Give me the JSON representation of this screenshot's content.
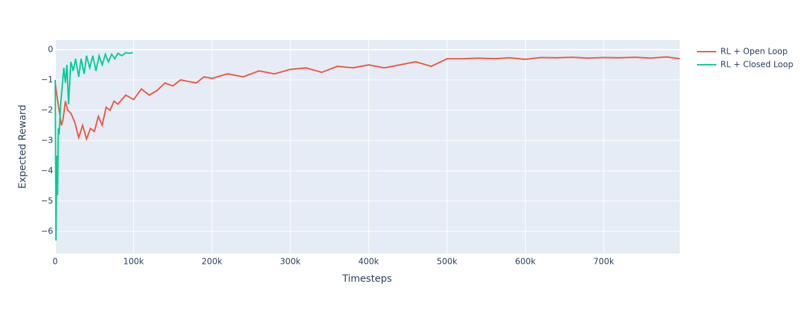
{
  "chart_data": {
    "type": "line",
    "x_label": "Timesteps",
    "y_label": "Expected Reward",
    "xlim": [
      0,
      797000
    ],
    "ylim": [
      -6.73,
      0.32
    ],
    "xticks": [
      0,
      {
        "value": 100000,
        "label": "100k"
      },
      {
        "value": 200000,
        "label": "200k"
      },
      {
        "value": 300000,
        "label": "300k"
      },
      {
        "value": 400000,
        "label": "400k"
      },
      {
        "value": 500000,
        "label": "500k"
      },
      {
        "value": 600000,
        "label": "600k"
      },
      {
        "value": 700000,
        "label": "700k"
      }
    ],
    "yticks": [
      {
        "value": -6,
        "label": "−6"
      },
      {
        "value": -5,
        "label": "−5"
      },
      {
        "value": -4,
        "label": "−4"
      },
      {
        "value": -3,
        "label": "−3"
      },
      {
        "value": -2,
        "label": "−2"
      },
      {
        "value": -1,
        "label": "−1"
      },
      0
    ],
    "grid": true,
    "legend": "top-right",
    "series": [
      {
        "name": "RL + Open Loop",
        "color": "#EF553B",
        "x": [
          0,
          2000,
          5000,
          8000,
          10000,
          13000,
          16000,
          20000,
          25000,
          30000,
          35000,
          40000,
          45000,
          50000,
          55000,
          60000,
          65000,
          70000,
          75000,
          80000,
          90000,
          100000,
          110000,
          120000,
          130000,
          140000,
          150000,
          160000,
          170000,
          180000,
          190000,
          200000,
          220000,
          240000,
          260000,
          280000,
          300000,
          320000,
          340000,
          360000,
          380000,
          400000,
          420000,
          440000,
          460000,
          480000,
          500000,
          520000,
          540000,
          560000,
          580000,
          600000,
          620000,
          640000,
          660000,
          680000,
          700000,
          720000,
          740000,
          760000,
          780000,
          797000
        ],
        "values": [
          -1.1,
          -1.5,
          -2.0,
          -2.5,
          -2.3,
          -1.7,
          -2.0,
          -2.1,
          -2.4,
          -2.9,
          -2.5,
          -2.95,
          -2.6,
          -2.7,
          -2.2,
          -2.5,
          -1.9,
          -2.0,
          -1.7,
          -1.8,
          -1.5,
          -1.65,
          -1.3,
          -1.5,
          -1.35,
          -1.1,
          -1.2,
          -1.0,
          -1.05,
          -1.1,
          -0.9,
          -0.95,
          -0.8,
          -0.9,
          -0.7,
          -0.8,
          -0.65,
          -0.6,
          -0.75,
          -0.55,
          -0.6,
          -0.5,
          -0.6,
          -0.5,
          -0.4,
          -0.55,
          -0.3,
          -0.3,
          -0.28,
          -0.3,
          -0.27,
          -0.32,
          -0.26,
          -0.27,
          -0.25,
          -0.28,
          -0.26,
          -0.27,
          -0.25,
          -0.28,
          -0.24,
          -0.3
        ]
      },
      {
        "name": "RL + Closed Loop",
        "color": "#00CC96",
        "x": [
          0,
          1000,
          2000,
          3000,
          4000,
          5000,
          7000,
          9000,
          11000,
          13000,
          15000,
          17000,
          20000,
          23000,
          26000,
          30000,
          33000,
          37000,
          40000,
          44000,
          48000,
          52000,
          56000,
          60000,
          64000,
          68000,
          72000,
          76000,
          80000,
          85000,
          90000,
          95000,
          99000
        ],
        "values": [
          -1.0,
          -6.3,
          -3.5,
          -4.8,
          -2.6,
          -2.8,
          -1.8,
          -1.2,
          -0.6,
          -1.1,
          -0.5,
          -1.8,
          -0.4,
          -0.7,
          -0.3,
          -0.9,
          -0.3,
          -0.8,
          -0.2,
          -0.6,
          -0.2,
          -0.7,
          -0.2,
          -0.5,
          -0.15,
          -0.4,
          -0.15,
          -0.3,
          -0.12,
          -0.2,
          -0.1,
          -0.12,
          -0.1
        ]
      }
    ]
  }
}
